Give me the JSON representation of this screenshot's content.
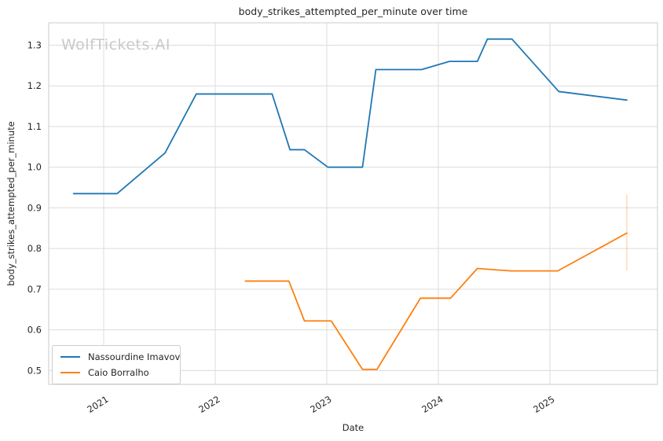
{
  "watermark": "WolfTickets.AI",
  "chart_data": {
    "type": "line",
    "title": "body_strikes_attempted_per_minute over time",
    "xlabel": "Date",
    "ylabel": "body_strikes_attempted_per_minute",
    "xlim": [
      2020.507,
      2025.965
    ],
    "ylim": [
      0.466,
      1.355
    ],
    "xticks": [
      "2021",
      "2022",
      "2023",
      "2024",
      "2025"
    ],
    "yticks": [
      "0.5",
      "0.6",
      "0.7",
      "0.8",
      "0.9",
      "1.0",
      "1.1",
      "1.2",
      "1.3"
    ],
    "grid": true,
    "grid_color": "#dcdcdc",
    "spine_color": "#cbcbcb",
    "legend_position": "lower-left",
    "series": [
      {
        "name": "Nassourdine Imavov",
        "color": "#1f77b4",
        "points": [
          [
            2020.73,
            0.935
          ],
          [
            2021.12,
            0.935
          ],
          [
            2021.55,
            1.035
          ],
          [
            2021.83,
            1.18
          ],
          [
            2022.51,
            1.18
          ],
          [
            2022.67,
            1.043
          ],
          [
            2022.8,
            1.043
          ],
          [
            2023.01,
            1.0
          ],
          [
            2023.32,
            1.0
          ],
          [
            2023.44,
            1.24
          ],
          [
            2023.85,
            1.24
          ],
          [
            2024.1,
            1.26
          ],
          [
            2024.35,
            1.26
          ],
          [
            2024.44,
            1.315
          ],
          [
            2024.66,
            1.315
          ],
          [
            2025.08,
            1.186
          ],
          [
            2025.69,
            1.165
          ]
        ]
      },
      {
        "name": "Caio Borralho",
        "color": "#ff7f0e",
        "points": [
          [
            2022.27,
            0.72
          ],
          [
            2022.66,
            0.72
          ],
          [
            2022.8,
            0.622
          ],
          [
            2023.04,
            0.622
          ],
          [
            2023.32,
            0.503
          ],
          [
            2023.45,
            0.503
          ],
          [
            2023.84,
            0.678
          ],
          [
            2024.11,
            0.678
          ],
          [
            2024.35,
            0.751
          ],
          [
            2024.65,
            0.745
          ],
          [
            2025.07,
            0.745
          ],
          [
            2025.69,
            0.838
          ]
        ]
      }
    ],
    "error_bar": {
      "series": "Caio Borralho",
      "x": 2025.69,
      "y_min": 0.746,
      "y_max": 0.933,
      "color": "#ff7f0e",
      "opacity": 0.3
    }
  }
}
